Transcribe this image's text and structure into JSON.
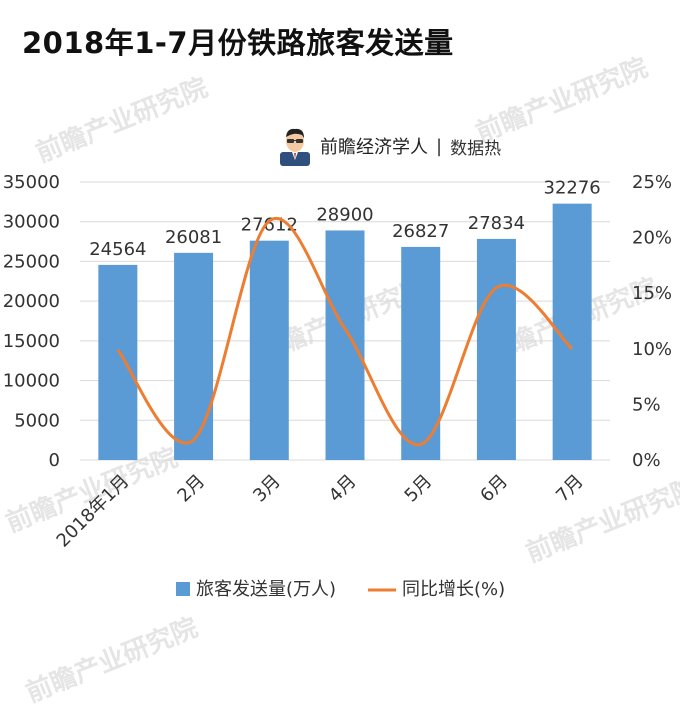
{
  "title": "2018年1-7月份铁路旅客发送量",
  "brand": {
    "name": "前瞻经济学人",
    "separator": "|",
    "tag": "数据热"
  },
  "watermark_text": "前瞻产业研究院",
  "colors": {
    "bar": "#5b9bd5",
    "line": "#ed7d31",
    "grid": "#d9d9d9",
    "text": "#333333"
  },
  "chart_data": {
    "type": "bar",
    "categories": [
      "2018年1月",
      "2月",
      "3月",
      "4月",
      "5月",
      "6月",
      "7月"
    ],
    "series": [
      {
        "name": "旅客发送量(万人)",
        "type": "bar",
        "axis": "left",
        "values": [
          24564,
          26081,
          27612,
          28900,
          26827,
          27834,
          32276
        ]
      },
      {
        "name": "同比增长(%)",
        "type": "line",
        "axis": "right",
        "values": [
          9.9,
          1.8,
          21.5,
          11.8,
          1.4,
          15.5,
          10.0
        ]
      }
    ],
    "y_left": {
      "ylim": [
        0,
        35000
      ],
      "ticks": [
        "0",
        "5000",
        "10000",
        "15000",
        "20000",
        "25000",
        "30000",
        "35000"
      ]
    },
    "y_right": {
      "ylim": [
        0,
        25
      ],
      "ticks": [
        "0%",
        "5%",
        "10%",
        "15%",
        "20%",
        "25%"
      ]
    },
    "data_labels": [
      "24564",
      "26081",
      "27612",
      "28900",
      "26827",
      "27834",
      "32276"
    ],
    "legend": "bottom",
    "grid": true
  }
}
